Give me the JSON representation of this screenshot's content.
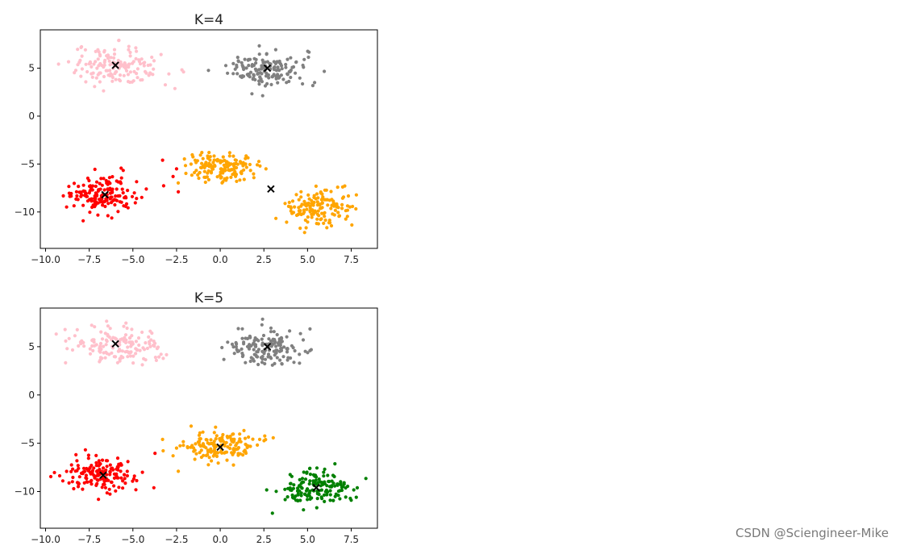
{
  "watermark": "CSDN @Sciengineer-Mike",
  "colors": {
    "pink": "#ffc0cb",
    "gray": "#808080",
    "red": "#ff0000",
    "orange": "#ffa500",
    "green": "#008000",
    "centroid": "#000000"
  },
  "chart_data": [
    {
      "type": "scatter",
      "title": "K=4",
      "xlim": [
        -10.3,
        9.0
      ],
      "ylim": [
        -13.8,
        9.0
      ],
      "xticks": [
        -10.0,
        -7.5,
        -5.0,
        -2.5,
        0.0,
        2.5,
        5.0,
        7.5
      ],
      "xtick_labels": [
        "−10.0",
        "−7.5",
        "−5.0",
        "−2.5",
        "0.0",
        "2.5",
        "5.0",
        "7.5"
      ],
      "yticks": [
        5,
        0,
        -5,
        -10
      ],
      "ytick_labels": [
        "5",
        "0",
        "−5",
        "−10"
      ],
      "grid": false,
      "clusters": [
        {
          "color": "pink",
          "center": [
            -5.8,
            5.2
          ],
          "spread": [
            1.3,
            1.0
          ],
          "count": 150
        },
        {
          "color": "gray",
          "center": [
            2.7,
            4.9
          ],
          "spread": [
            1.1,
            0.9
          ],
          "count": 150
        },
        {
          "color": "red",
          "center": [
            -6.7,
            -8.2
          ],
          "spread": [
            1.0,
            0.95
          ],
          "count": 150
        },
        {
          "color": "orange",
          "center": [
            0.0,
            -5.3
          ],
          "spread": [
            1.0,
            0.8
          ],
          "count": 150
        },
        {
          "color": "orange",
          "center": [
            5.6,
            -9.6
          ],
          "spread": [
            1.0,
            0.9
          ],
          "count": 150
        }
      ],
      "extra_points": [
        {
          "color": "red",
          "x": -3.3,
          "y": -4.6
        },
        {
          "color": "red",
          "x": -2.7,
          "y": -6.3
        },
        {
          "color": "red",
          "x": -2.5,
          "y": -5.5
        },
        {
          "color": "red",
          "x": -2.4,
          "y": -7.9
        }
      ],
      "centroids": [
        [
          -6.0,
          5.3
        ],
        [
          2.7,
          5.0
        ],
        [
          -6.6,
          -8.2
        ],
        [
          2.9,
          -7.6
        ]
      ]
    },
    {
      "type": "scatter",
      "title": "K=5",
      "xlim": [
        -10.3,
        9.0
      ],
      "ylim": [
        -13.8,
        9.0
      ],
      "xticks": [
        -10.0,
        -7.5,
        -5.0,
        -2.5,
        0.0,
        2.5,
        5.0,
        7.5
      ],
      "xtick_labels": [
        "−10.0",
        "−7.5",
        "−5.0",
        "−2.5",
        "0.0",
        "2.5",
        "5.0",
        "7.5"
      ],
      "yticks": [
        5,
        0,
        -5,
        -10
      ],
      "ytick_labels": [
        "5",
        "0",
        "−5",
        "−10"
      ],
      "grid": false,
      "clusters": [
        {
          "color": "pink",
          "center": [
            -5.8,
            5.2
          ],
          "spread": [
            1.3,
            1.0
          ],
          "count": 150
        },
        {
          "color": "gray",
          "center": [
            2.7,
            4.9
          ],
          "spread": [
            1.1,
            0.9
          ],
          "count": 150
        },
        {
          "color": "red",
          "center": [
            -6.7,
            -8.2
          ],
          "spread": [
            1.0,
            0.95
          ],
          "count": 150
        },
        {
          "color": "orange",
          "center": [
            0.0,
            -5.3
          ],
          "spread": [
            1.0,
            0.8
          ],
          "count": 150
        },
        {
          "color": "green",
          "center": [
            5.6,
            -9.6
          ],
          "spread": [
            1.0,
            0.9
          ],
          "count": 150
        }
      ],
      "extra_points": [
        {
          "color": "orange",
          "x": -3.3,
          "y": -4.6
        },
        {
          "color": "orange",
          "x": -2.7,
          "y": -6.3
        },
        {
          "color": "orange",
          "x": -2.5,
          "y": -5.5
        },
        {
          "color": "orange",
          "x": -2.4,
          "y": -7.9
        }
      ],
      "centroids": [
        [
          -6.0,
          5.3
        ],
        [
          2.7,
          5.0
        ],
        [
          -6.7,
          -8.3
        ],
        [
          0.0,
          -5.4
        ],
        [
          5.5,
          -9.6
        ]
      ]
    }
  ]
}
